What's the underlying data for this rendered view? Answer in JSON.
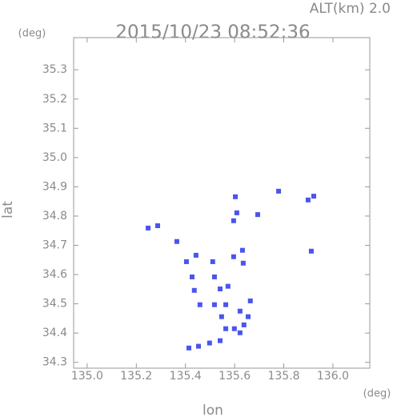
{
  "chart_data": {
    "type": "scatter",
    "annotation": "ALT(km) 2.0",
    "title": "2015/10/23 08:52:36",
    "y_unit": "(deg)",
    "x_unit": "(deg)",
    "xlabel": "lon",
    "ylabel": "lat",
    "color": "#4a55ee",
    "x": [
      135.248,
      135.287,
      135.365,
      135.404,
      135.443,
      135.427,
      135.459,
      135.511,
      135.518,
      135.518,
      135.541,
      135.573,
      135.564,
      135.547,
      135.564,
      135.541,
      135.498,
      135.453,
      135.414,
      135.599,
      135.622,
      135.635,
      135.632,
      135.596,
      135.596,
      135.609,
      135.603,
      135.664,
      135.655,
      135.638,
      135.622,
      135.779,
      135.899,
      135.922,
      135.912,
      135.694,
      135.436
    ],
    "values": [
      34.759,
      34.767,
      34.713,
      34.644,
      34.666,
      34.592,
      34.497,
      34.644,
      34.592,
      34.497,
      34.551,
      34.56,
      34.497,
      34.456,
      34.415,
      34.374,
      34.366,
      34.355,
      34.349,
      34.415,
      34.475,
      34.639,
      34.683,
      34.661,
      34.784,
      34.811,
      34.866,
      34.51,
      34.456,
      34.428,
      34.401,
      34.885,
      34.855,
      34.868,
      34.68,
      34.805,
      34.546
    ],
    "xlim": [
      134.945,
      136.15
    ],
    "ylim": [
      34.28,
      35.41
    ],
    "xticks": [
      {
        "value": 135,
        "label": "135.0"
      },
      135.2,
      135.4,
      135.6,
      135.8,
      {
        "value": 136,
        "label": "136.0"
      }
    ],
    "yticks": [
      34.3,
      34.4,
      34.5,
      34.6,
      34.7,
      34.8,
      34.9,
      {
        "value": 35,
        "label": "35.0"
      },
      35.1,
      35.2,
      35.3
    ]
  }
}
